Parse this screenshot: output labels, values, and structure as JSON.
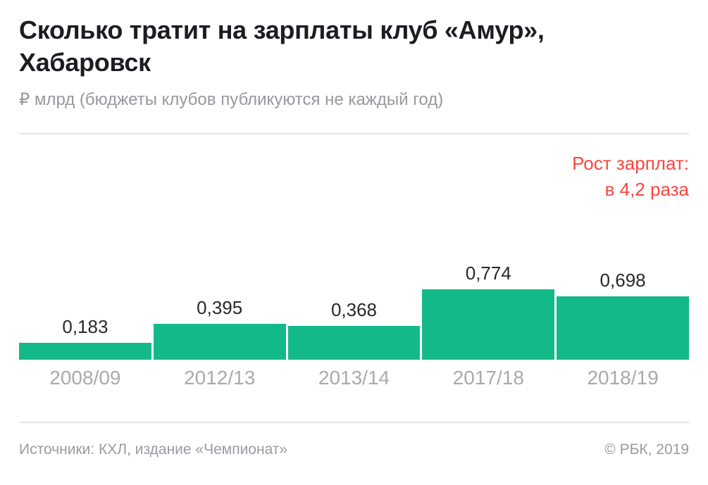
{
  "header": {
    "title": "Сколько тратит на зарплаты клуб «Амур», Хабаровск",
    "subtitle": "₽ млрд (бюджеты клубов публикуются не каждый год)"
  },
  "annotation": {
    "line1": "Рост зарплат:",
    "line2": "в 4,2 раза",
    "color": "#F9463F"
  },
  "chart_data": {
    "type": "bar",
    "title": "Сколько тратит на зарплаты клуб «Амур», Хабаровск",
    "subtitle": "₽ млрд (бюджеты клубов публикуются не каждый год)",
    "categories": [
      "2008/09",
      "2012/13",
      "2013/14",
      "2017/18",
      "2018/19"
    ],
    "values": [
      0.183,
      0.395,
      0.368,
      0.774,
      0.698
    ],
    "value_labels": [
      "0,183",
      "0,395",
      "0,368",
      "0,774",
      "0,698"
    ],
    "unit": "₽ млрд",
    "annotation": "Рост зарплат: в 4,2 раза",
    "bar_color": "#14B98A",
    "annotation_color": "#F9463F",
    "grid": false,
    "legend": false,
    "ylim": [
      0,
      0.774
    ]
  },
  "footer": {
    "source": "Источники: КХЛ, издание «Чемпионат»",
    "copyright": "© РБК, 2019"
  }
}
